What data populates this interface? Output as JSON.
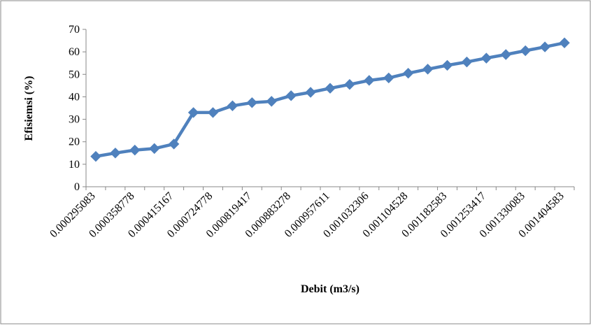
{
  "chart_data": {
    "type": "line",
    "title": "",
    "xlabel": "Debit (m3/s)",
    "ylabel": "Efisiemsi (%)",
    "ylim": [
      0,
      70
    ],
    "yticks": [
      0,
      10,
      20,
      30,
      40,
      50,
      60,
      70
    ],
    "grid": false,
    "legend": "none",
    "x": [
      "0.000295083",
      "",
      "0.000358778",
      "",
      "0.000415167",
      "",
      "0.000724778",
      "",
      "0.000819417",
      "",
      "0.000883278",
      "",
      "0.000957611",
      "",
      "0.001032306",
      "",
      "0.001104528",
      "",
      "0.001182583",
      "",
      "0.001253417",
      "",
      "0.001330083",
      "",
      "0.001404583"
    ],
    "series": [
      {
        "name": "",
        "color": "#4F81BD",
        "values": [
          13.5,
          15,
          16.3,
          17,
          19,
          33,
          33,
          36,
          37.4,
          38,
          40.5,
          42,
          43.8,
          45.5,
          47.3,
          48.4,
          50.5,
          52.3,
          54,
          55.5,
          57.2,
          58.8,
          60.5,
          62.2,
          64
        ]
      }
    ]
  }
}
